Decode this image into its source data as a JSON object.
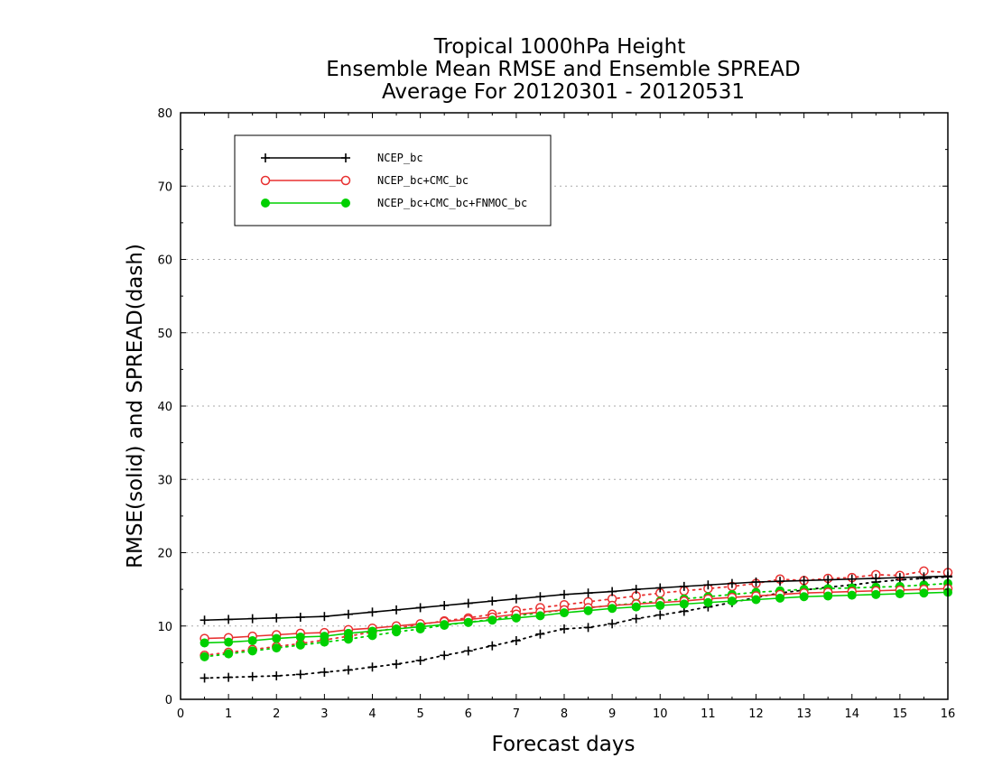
{
  "chart_data": {
    "type": "line",
    "title": [
      "Tropical 1000hPa Height",
      "Ensemble Mean RMSE and Ensemble SPREAD",
      "Average For 20120301 - 20120531"
    ],
    "xlabel": "Forecast days",
    "ylabel": "RMSE(solid) and SPREAD(dash)",
    "xlim": [
      0,
      16
    ],
    "ylim": [
      0,
      80
    ],
    "x_ticks": [
      0,
      1,
      2,
      3,
      4,
      5,
      6,
      7,
      8,
      9,
      10,
      11,
      12,
      13,
      14,
      15,
      16
    ],
    "y_ticks": [
      0,
      10,
      20,
      30,
      40,
      50,
      60,
      70,
      80
    ],
    "grid": true,
    "legend_position": "top-left",
    "x": [
      0.5,
      1,
      1.5,
      2,
      2.5,
      3,
      3.5,
      4,
      4.5,
      5,
      5.5,
      6,
      6.5,
      7,
      7.5,
      8,
      8.5,
      9,
      9.5,
      10,
      10.5,
      11,
      11.5,
      12,
      12.5,
      13,
      13.5,
      14,
      14.5,
      15,
      15.5,
      16
    ],
    "series": [
      {
        "name": "NCEP_bc",
        "color": "#000000",
        "marker": "plus",
        "rmse": [
          10.8,
          10.9,
          11.0,
          11.1,
          11.2,
          11.3,
          11.6,
          11.9,
          12.2,
          12.5,
          12.8,
          13.1,
          13.4,
          13.7,
          14.0,
          14.3,
          14.5,
          14.7,
          15.0,
          15.2,
          15.4,
          15.6,
          15.8,
          16.0,
          16.1,
          16.2,
          16.3,
          16.4,
          16.5,
          16.6,
          16.7,
          16.8
        ],
        "spread": [
          2.9,
          3.0,
          3.1,
          3.2,
          3.4,
          3.7,
          4.0,
          4.4,
          4.8,
          5.3,
          6.0,
          6.6,
          7.3,
          8.0,
          8.9,
          9.6,
          9.8,
          10.3,
          11.0,
          11.5,
          12.0,
          12.6,
          13.2,
          13.9,
          14.5,
          14.9,
          15.3,
          15.6,
          16.0,
          16.3,
          16.5,
          16.7
        ]
      },
      {
        "name": "NCEP_bc+CMC_bc",
        "color": "#e83030",
        "marker": "open-circle",
        "rmse": [
          8.3,
          8.4,
          8.6,
          8.8,
          9.0,
          9.1,
          9.5,
          9.7,
          10.0,
          10.3,
          10.6,
          10.9,
          11.2,
          11.6,
          11.9,
          12.2,
          12.5,
          12.8,
          13.0,
          13.2,
          13.4,
          13.7,
          13.9,
          14.1,
          14.3,
          14.5,
          14.6,
          14.7,
          14.8,
          14.9,
          15.0,
          15.1
        ],
        "spread": [
          6.0,
          6.4,
          6.8,
          7.2,
          7.6,
          8.1,
          8.6,
          9.2,
          9.7,
          10.2,
          10.7,
          11.1,
          11.6,
          12.1,
          12.5,
          12.9,
          13.3,
          13.7,
          14.1,
          14.5,
          14.8,
          15.1,
          15.4,
          15.8,
          16.4,
          16.2,
          16.5,
          16.6,
          17.0,
          16.9,
          17.5,
          17.3
        ]
      },
      {
        "name": "NCEP_bc+CMC_bc+FNMOC_bc",
        "color": "#00d000",
        "marker": "filled-circle",
        "rmse": [
          7.7,
          7.8,
          8.0,
          8.3,
          8.5,
          8.6,
          9.0,
          9.3,
          9.6,
          9.9,
          10.2,
          10.5,
          10.8,
          11.1,
          11.4,
          11.8,
          12.1,
          12.4,
          12.6,
          12.8,
          13.0,
          13.2,
          13.4,
          13.6,
          13.8,
          14.0,
          14.1,
          14.2,
          14.3,
          14.4,
          14.5,
          14.6
        ],
        "spread": [
          5.8,
          6.2,
          6.6,
          7.0,
          7.4,
          7.8,
          8.2,
          8.7,
          9.2,
          9.6,
          10.1,
          10.5,
          10.9,
          11.4,
          11.8,
          12.2,
          12.5,
          12.8,
          13.1,
          13.4,
          13.7,
          14.0,
          14.3,
          14.6,
          14.8,
          15.0,
          15.1,
          15.2,
          15.3,
          15.4,
          15.6,
          15.8
        ]
      }
    ]
  }
}
